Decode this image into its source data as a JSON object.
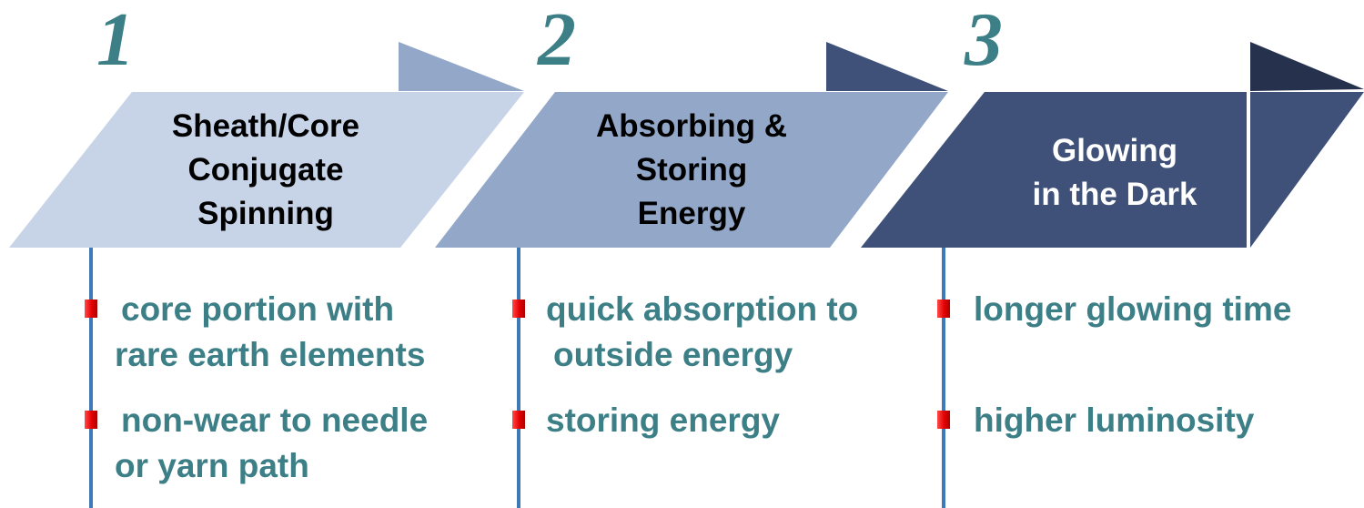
{
  "colors": {
    "step1_fill": "#c7d4e8",
    "step1_tab": "#93a7c9",
    "step2_fill": "#93a7c9",
    "step2_tab": "#3f5178",
    "step3_fill": "#3f5178",
    "step3_tab": "#26324d",
    "number": "#3d7f87",
    "bullet_text": "#3d7f87",
    "timeline": "#3f7ab8",
    "marker": "#e60000"
  },
  "steps": [
    {
      "number": "1",
      "title_lines": [
        "Sheath/Core",
        "Conjugate",
        "Spinning"
      ],
      "bullets": [
        {
          "lines": [
            "core portion with",
            "rare earth elements"
          ]
        },
        {
          "lines": [
            "non-wear to needle",
            "or yarn path"
          ]
        }
      ]
    },
    {
      "number": "2",
      "title_lines": [
        "Absorbing &",
        "Storing",
        "Energy"
      ],
      "bullets": [
        {
          "lines": [
            "quick absorption to",
            "outside  energy"
          ]
        },
        {
          "lines": [
            "storing energy"
          ]
        }
      ]
    },
    {
      "number": "3",
      "title_lines": [
        "Glowing",
        "in the Dark"
      ],
      "bullets": [
        {
          "lines": [
            "longer glowing time"
          ]
        },
        {
          "lines": [
            "higher luminosity"
          ]
        }
      ]
    }
  ]
}
